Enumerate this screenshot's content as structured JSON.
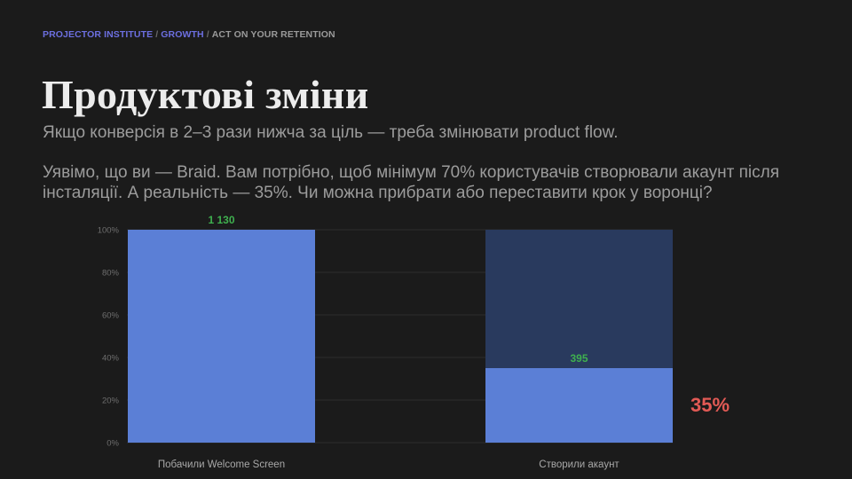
{
  "breadcrumb": {
    "part1": "PROJECTOR INSTITUTE",
    "sep1": "/",
    "part2": "GROWTH",
    "sep2": "/",
    "part3": "ACT ON YOUR RETENTION"
  },
  "title": "Продуктові зміни",
  "subtitle": "Якщо конверсія в 2–3 рази нижча за ціль — треба змінювати product flow.",
  "body": "Уявімо, що ви — Braid. Вам потрібно, щоб мінімум 70% користувачів створювали акаунт після інсталяції. А реальність — 35%. Чи можна прибрати або переставити крок у воронці?",
  "callout": "35%",
  "colors": {
    "bar": "#5b7fd6",
    "bar_remainder": "#293a5e",
    "data_label": "#3fb04f",
    "callout": "#e25a55",
    "grid": "#2e2e2e",
    "tick": "#6e6e6e",
    "category": "#a8a8a8"
  },
  "chart_data": {
    "type": "bar",
    "stacked": true,
    "categories": [
      "Побачили Welcome Screen",
      "Створили акаунт"
    ],
    "counts": [
      1130,
      395
    ],
    "data_labels": [
      "1 130",
      "395"
    ],
    "values_percent": [
      100,
      35
    ],
    "remainder_percent": [
      0,
      65
    ],
    "yticks": [
      "0%",
      "20%",
      "40%",
      "60%",
      "80%",
      "100%"
    ],
    "ylim": [
      0,
      100
    ],
    "grid": true
  }
}
